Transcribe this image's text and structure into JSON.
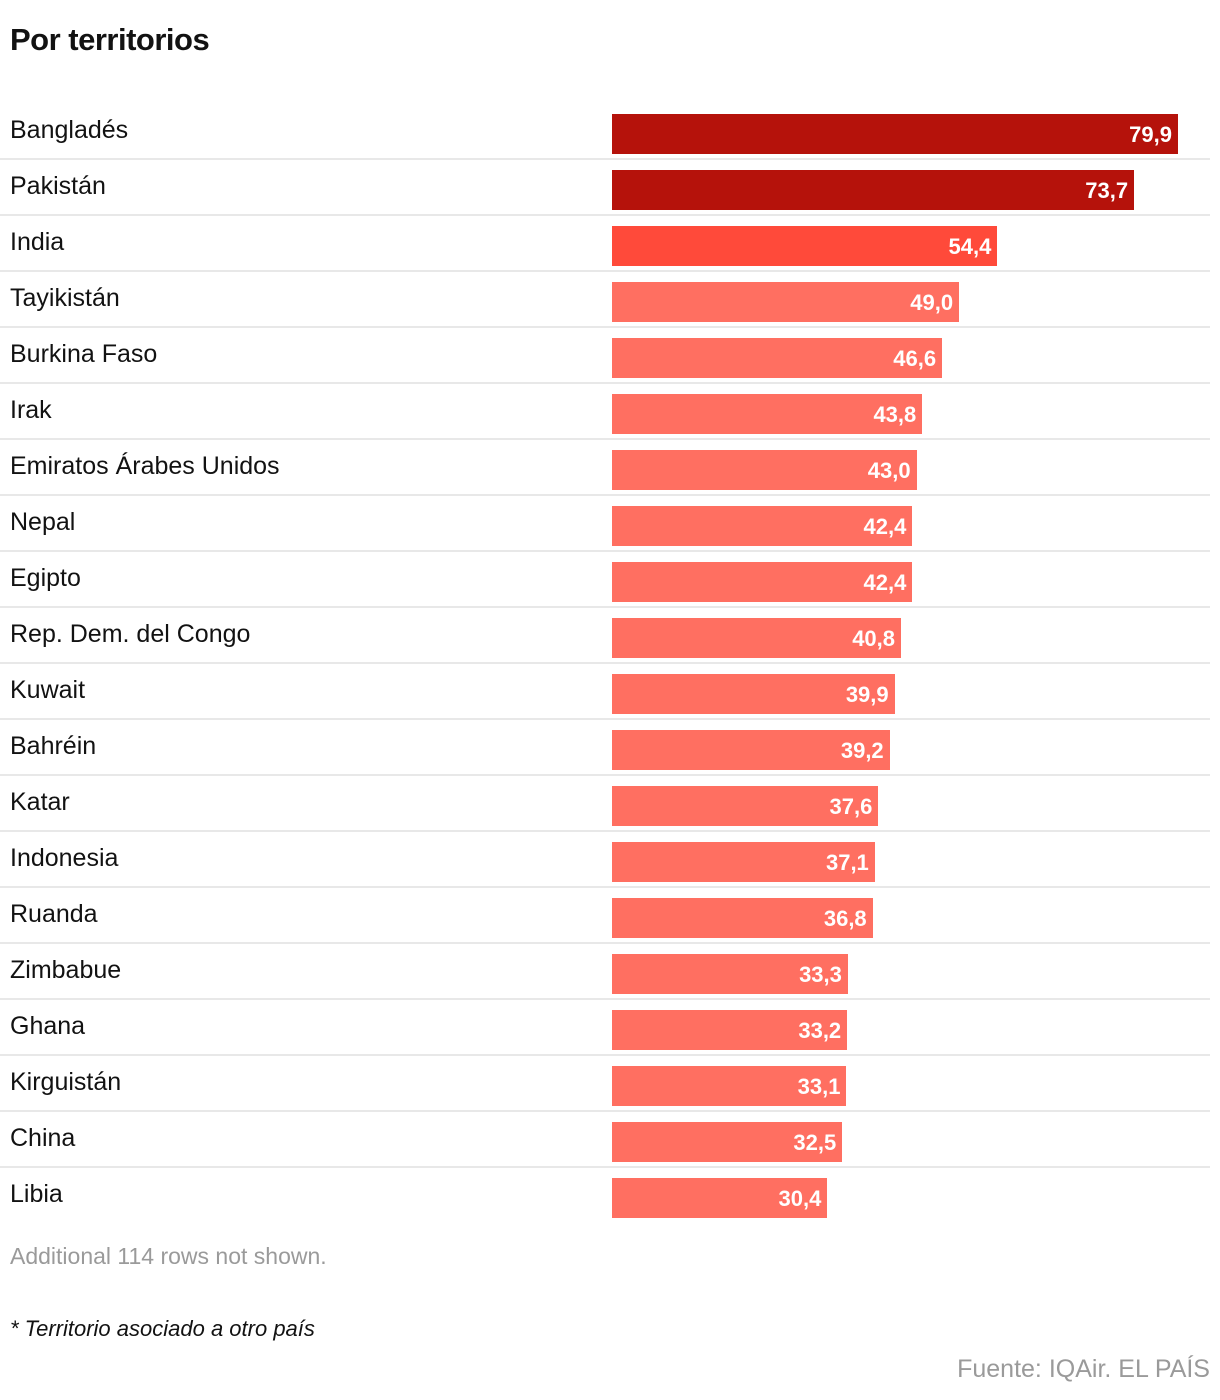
{
  "title": "Por territorios",
  "chart_data": {
    "type": "bar",
    "orientation": "horizontal",
    "categories": [
      "Bangladés",
      "Pakistán",
      "India",
      "Tayikistán",
      "Burkina Faso",
      "Irak",
      "Emiratos Árabes Unidos",
      "Nepal",
      "Egipto",
      "Rep. Dem. del Congo",
      "Kuwait",
      "Bahréin",
      "Katar",
      "Indonesia",
      "Ruanda",
      "Zimbabue",
      "Ghana",
      "Kirguistán",
      "China",
      "Libia"
    ],
    "values": [
      79.9,
      73.7,
      54.4,
      49.0,
      46.6,
      43.8,
      43.0,
      42.4,
      42.4,
      40.8,
      39.9,
      39.2,
      37.6,
      37.1,
      36.8,
      33.3,
      33.2,
      33.1,
      32.5,
      30.4
    ],
    "value_labels": [
      "79,9",
      "73,7",
      "54,4",
      "49,0",
      "46,6",
      "43,8",
      "43,0",
      "42,4",
      "42,4",
      "40,8",
      "39,9",
      "39,2",
      "37,6",
      "37,1",
      "36,8",
      "33,3",
      "33,2",
      "33,1",
      "32,5",
      "30,4"
    ],
    "colors": [
      "#b5120b",
      "#b5120b",
      "#ff4a3a",
      "#ff6f61",
      "#ff6f61",
      "#ff6f61",
      "#ff6f61",
      "#ff6f61",
      "#ff6f61",
      "#ff6f61",
      "#ff6f61",
      "#ff6f61",
      "#ff6f61",
      "#ff6f61",
      "#ff6f61",
      "#ff6f61",
      "#ff6f61",
      "#ff6f61",
      "#ff6f61",
      "#ff6f61"
    ],
    "xlim": [
      0,
      79.9
    ],
    "grid": false
  },
  "rows_note": "Additional 114 rows not shown.",
  "footnote": "* Territorio asociado a otro país",
  "source": "Fuente: IQAir. EL PAÍS"
}
